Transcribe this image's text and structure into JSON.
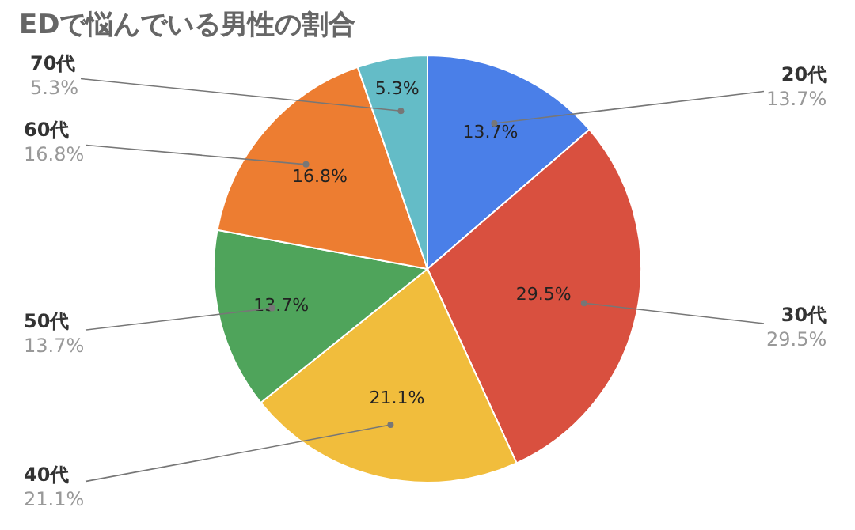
{
  "chart_data": {
    "type": "pie",
    "title": "EDで悩んでいる男性の割合",
    "categories": [
      "20代",
      "30代",
      "40代",
      "50代",
      "60代",
      "70代"
    ],
    "values": [
      13.7,
      29.5,
      21.1,
      13.7,
      16.8,
      5.3
    ],
    "value_labels": [
      "13.7%",
      "29.5%",
      "21.1%",
      "13.7%",
      "16.8%",
      "5.3%"
    ],
    "colors": [
      "#4a7fe8",
      "#d9503f",
      "#f1bd3c",
      "#4fa45b",
      "#ed7d31",
      "#64bcc7"
    ]
  }
}
